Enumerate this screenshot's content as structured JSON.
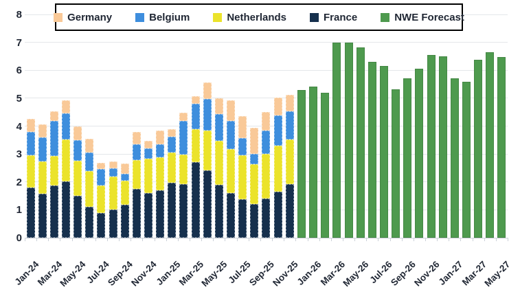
{
  "chart_data": {
    "type": "bar",
    "subtype": "stacked-with-forecast",
    "title": "",
    "ylim": [
      0,
      8
    ],
    "y_ticks": [
      0,
      1,
      2,
      3,
      4,
      5,
      6,
      7,
      8
    ],
    "grid": true,
    "legend_position": "top-center",
    "x_label_every": 2,
    "categories": [
      "Jan-24",
      "Feb-24",
      "Mar-24",
      "Apr-24",
      "May-24",
      "Jun-24",
      "Jul-24",
      "Aug-24",
      "Sep-24",
      "Oct-24",
      "Nov-24",
      "Dec-24",
      "Jan-25",
      "Feb-25",
      "Mar-25",
      "Apr-25",
      "May-25",
      "Jun-25",
      "Jul-25",
      "Aug-25",
      "Sep-25",
      "Oct-25",
      "Nov-25",
      "Dec-25",
      "Jan-26",
      "Feb-26",
      "Mar-26",
      "Apr-26",
      "May-26",
      "Jun-26",
      "Jul-26",
      "Aug-26",
      "Sep-26",
      "Oct-26",
      "Nov-26",
      "Dec-26",
      "Jan-27",
      "Feb-27",
      "Mar-27",
      "Apr-27",
      "May-27"
    ],
    "stack_order_bottom_to_top": [
      "France",
      "Netherlands",
      "Belgium",
      "Germany"
    ],
    "legend_order": [
      "Germany",
      "Belgium",
      "Netherlands",
      "France",
      "NWE Forecast"
    ],
    "series": [
      {
        "name": "France",
        "color": "#16304d",
        "values": [
          1.8,
          1.57,
          1.87,
          2.03,
          1.5,
          1.12,
          0.89,
          1.02,
          1.17,
          1.74,
          1.61,
          1.69,
          1.97,
          1.92,
          2.7,
          2.41,
          1.9,
          1.59,
          1.37,
          1.2,
          1.4,
          1.64,
          1.93,
          null,
          null,
          null,
          null,
          null,
          null,
          null,
          null,
          null,
          null,
          null,
          null,
          null,
          null,
          null,
          null,
          null,
          null
        ]
      },
      {
        "name": "Netherlands",
        "color": "#ebe32b",
        "values": [
          1.15,
          1.16,
          1.07,
          1.48,
          1.26,
          1.27,
          0.98,
          1.18,
          0.88,
          1.04,
          1.23,
          1.2,
          1.09,
          1.05,
          1.2,
          1.44,
          1.57,
          1.59,
          1.59,
          1.43,
          1.6,
          1.65,
          1.59,
          null,
          null,
          null,
          null,
          null,
          null,
          null,
          null,
          null,
          null,
          null,
          null,
          null,
          null,
          null,
          null,
          null,
          null
        ]
      },
      {
        "name": "Belgium",
        "color": "#3e8edd",
        "values": [
          0.85,
          0.86,
          1.25,
          0.95,
          0.73,
          0.67,
          0.6,
          0.29,
          0.23,
          0.56,
          0.37,
          0.46,
          0.56,
          1.21,
          0.89,
          1.12,
          0.96,
          1.0,
          0.61,
          0.38,
          0.85,
          1.09,
          1.0,
          null,
          null,
          null,
          null,
          null,
          null,
          null,
          null,
          null,
          null,
          null,
          null,
          null,
          null,
          null,
          null,
          null,
          null
        ]
      },
      {
        "name": "Germany",
        "color": "#f9c998",
        "values": [
          0.45,
          0.47,
          0.33,
          0.47,
          0.51,
          0.48,
          0.22,
          0.24,
          0.38,
          0.45,
          0.25,
          0.48,
          0.26,
          0.29,
          0.28,
          0.59,
          0.57,
          0.75,
          0.79,
          0.92,
          0.66,
          0.63,
          0.6,
          null,
          null,
          null,
          null,
          null,
          null,
          null,
          null,
          null,
          null,
          null,
          null,
          null,
          null,
          null,
          null,
          null,
          null
        ]
      },
      {
        "name": "NWE Forecast",
        "color": "#4e9a4e",
        "values": [
          null,
          null,
          null,
          null,
          null,
          null,
          null,
          null,
          null,
          null,
          null,
          null,
          null,
          null,
          null,
          null,
          null,
          null,
          null,
          null,
          null,
          null,
          null,
          5.29,
          5.41,
          5.2,
          7.0,
          7.0,
          6.83,
          6.29,
          6.15,
          5.32,
          5.7,
          6.05,
          6.56,
          6.5,
          5.7,
          5.58,
          6.37,
          6.64,
          6.47
        ]
      }
    ],
    "colors": {
      "grid": "#e4e7ea",
      "axis": "#c9ced6",
      "text": "#1f2633",
      "background": "#ffffff"
    }
  }
}
